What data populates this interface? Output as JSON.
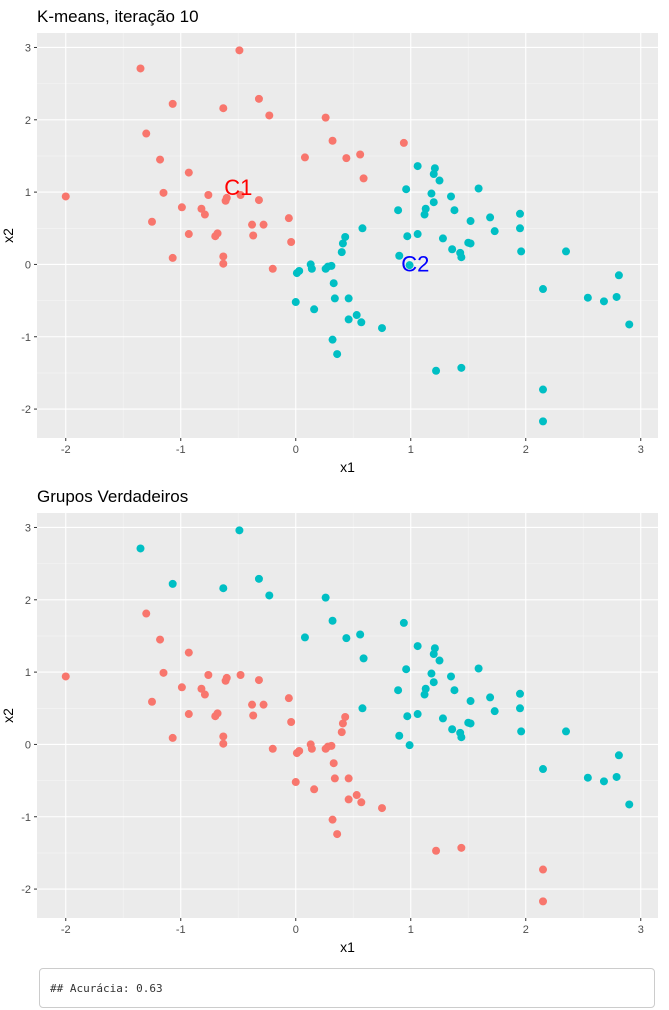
{
  "chart_data": [
    {
      "type": "scatter",
      "title": "K-means, iteração 10",
      "xlabel": "x1",
      "ylabel": "x2",
      "xlim": [
        -2.25,
        3.15
      ],
      "ylim": [
        -2.4,
        3.2
      ],
      "xticks": [
        "-2",
        "-1",
        "0",
        "1",
        "2",
        "3"
      ],
      "yticks": [
        "-2",
        "-1",
        "0",
        "1",
        "2",
        "3"
      ],
      "grid": true,
      "colors": {
        "c1": "#F8766D",
        "c2": "#00BFC4"
      },
      "annotations": [
        {
          "text": "C1",
          "x": -0.5,
          "y": 1.07,
          "color": "#ff0000"
        },
        {
          "text": "C2",
          "x": 1.04,
          "y": 0.01,
          "color": "#0000ff"
        }
      ],
      "series": [
        {
          "group": "c1",
          "points": [
            [
              -2.0,
              0.94
            ],
            [
              -1.35,
              2.71
            ],
            [
              -1.3,
              1.81
            ],
            [
              -1.25,
              0.59
            ],
            [
              -1.18,
              1.45
            ],
            [
              -1.15,
              0.99
            ],
            [
              -1.07,
              2.22
            ],
            [
              -1.07,
              0.09
            ],
            [
              -0.99,
              0.79
            ],
            [
              -0.93,
              1.27
            ],
            [
              -0.93,
              0.42
            ],
            [
              -0.82,
              0.77
            ],
            [
              -0.79,
              0.69
            ],
            [
              -0.76,
              0.96
            ],
            [
              -0.7,
              0.39
            ],
            [
              -0.68,
              0.43
            ],
            [
              -0.63,
              2.16
            ],
            [
              -0.63,
              0.11
            ],
            [
              -0.63,
              0.01
            ],
            [
              -0.61,
              0.88
            ],
            [
              -0.6,
              0.92
            ],
            [
              -0.49,
              2.96
            ],
            [
              -0.48,
              0.96
            ],
            [
              -0.38,
              0.55
            ],
            [
              -0.37,
              0.4
            ],
            [
              -0.32,
              2.29
            ],
            [
              -0.32,
              0.89
            ],
            [
              -0.28,
              0.55
            ],
            [
              -0.23,
              2.06
            ],
            [
              -0.2,
              -0.06
            ],
            [
              -0.06,
              0.64
            ],
            [
              -0.04,
              0.31
            ],
            [
              0.08,
              1.48
            ],
            [
              0.26,
              2.03
            ],
            [
              0.32,
              1.71
            ],
            [
              0.44,
              1.47
            ],
            [
              0.56,
              1.52
            ],
            [
              0.59,
              1.19
            ],
            [
              0.94,
              1.68
            ]
          ]
        },
        {
          "group": "c2",
          "points": [
            [
              0.0,
              -0.52
            ],
            [
              0.01,
              -0.12
            ],
            [
              0.03,
              -0.09
            ],
            [
              0.13,
              0.0
            ],
            [
              0.14,
              -0.06
            ],
            [
              0.16,
              -0.62
            ],
            [
              0.26,
              -0.06
            ],
            [
              0.28,
              -0.03
            ],
            [
              0.31,
              -0.02
            ],
            [
              0.32,
              -1.04
            ],
            [
              0.33,
              -0.26
            ],
            [
              0.34,
              -0.47
            ],
            [
              0.36,
              -1.24
            ],
            [
              0.4,
              0.17
            ],
            [
              0.41,
              0.29
            ],
            [
              0.43,
              0.38
            ],
            [
              0.46,
              -0.47
            ],
            [
              0.46,
              -0.76
            ],
            [
              0.53,
              -0.7
            ],
            [
              0.57,
              -0.8
            ],
            [
              0.58,
              0.5
            ],
            [
              0.75,
              -0.88
            ],
            [
              0.89,
              0.75
            ],
            [
              0.9,
              0.12
            ],
            [
              0.96,
              1.04
            ],
            [
              0.97,
              0.39
            ],
            [
              0.99,
              -0.01
            ],
            [
              1.06,
              1.36
            ],
            [
              1.06,
              0.42
            ],
            [
              1.12,
              0.69
            ],
            [
              1.13,
              0.77
            ],
            [
              1.18,
              0.98
            ],
            [
              1.2,
              0.86
            ],
            [
              1.2,
              1.25
            ],
            [
              1.21,
              1.33
            ],
            [
              1.22,
              -1.47
            ],
            [
              1.25,
              1.16
            ],
            [
              1.28,
              0.36
            ],
            [
              1.35,
              0.94
            ],
            [
              1.36,
              0.21
            ],
            [
              1.38,
              0.75
            ],
            [
              1.43,
              0.16
            ],
            [
              1.44,
              -1.43
            ],
            [
              1.44,
              0.1
            ],
            [
              1.5,
              0.3
            ],
            [
              1.52,
              0.6
            ],
            [
              1.52,
              0.29
            ],
            [
              1.59,
              1.05
            ],
            [
              1.69,
              0.65
            ],
            [
              1.73,
              0.46
            ],
            [
              1.95,
              0.7
            ],
            [
              1.95,
              0.5
            ],
            [
              1.96,
              0.18
            ],
            [
              2.15,
              -0.34
            ],
            [
              2.15,
              -1.73
            ],
            [
              2.15,
              -2.17
            ],
            [
              2.35,
              0.18
            ],
            [
              2.54,
              -0.46
            ],
            [
              2.68,
              -0.51
            ],
            [
              2.79,
              -0.45
            ],
            [
              2.81,
              -0.15
            ],
            [
              2.9,
              -0.83
            ]
          ]
        }
      ]
    },
    {
      "type": "scatter",
      "title": "Grupos Verdadeiros",
      "xlabel": "x1",
      "ylabel": "x2",
      "xlim": [
        -2.25,
        3.15
      ],
      "ylim": [
        -2.4,
        3.2
      ],
      "xticks": [
        "-2",
        "-1",
        "0",
        "1",
        "2",
        "3"
      ],
      "yticks": [
        "-2",
        "-1",
        "0",
        "1",
        "2",
        "3"
      ],
      "grid": true,
      "colors": {
        "c1": "#F8766D",
        "c2": "#00BFC4"
      },
      "annotations": [],
      "series": [
        {
          "group": "c1",
          "points": [
            [
              -2.0,
              0.94
            ],
            [
              -1.3,
              1.81
            ],
            [
              -1.25,
              0.59
            ],
            [
              -1.18,
              1.45
            ],
            [
              -1.15,
              0.99
            ],
            [
              -1.07,
              0.09
            ],
            [
              -0.99,
              0.79
            ],
            [
              -0.93,
              1.27
            ],
            [
              -0.93,
              0.42
            ],
            [
              -0.82,
              0.77
            ],
            [
              -0.79,
              0.69
            ],
            [
              -0.76,
              0.96
            ],
            [
              -0.7,
              0.39
            ],
            [
              -0.68,
              0.43
            ],
            [
              -0.63,
              0.11
            ],
            [
              -0.63,
              0.01
            ],
            [
              -0.61,
              0.88
            ],
            [
              -0.6,
              0.92
            ],
            [
              -0.48,
              0.96
            ],
            [
              -0.38,
              0.55
            ],
            [
              -0.37,
              0.4
            ],
            [
              -0.32,
              0.89
            ],
            [
              -0.28,
              0.55
            ],
            [
              -0.2,
              -0.06
            ],
            [
              -0.06,
              0.64
            ],
            [
              -0.04,
              0.31
            ],
            [
              0.0,
              -0.52
            ],
            [
              0.01,
              -0.12
            ],
            [
              0.03,
              -0.09
            ],
            [
              0.13,
              0.0
            ],
            [
              0.14,
              -0.06
            ],
            [
              0.16,
              -0.62
            ],
            [
              0.26,
              -0.06
            ],
            [
              0.28,
              -0.03
            ],
            [
              0.31,
              -0.02
            ],
            [
              0.32,
              -1.04
            ],
            [
              0.33,
              -0.26
            ],
            [
              0.34,
              -0.47
            ],
            [
              0.36,
              -1.24
            ],
            [
              0.4,
              0.17
            ],
            [
              0.41,
              0.29
            ],
            [
              0.43,
              0.38
            ],
            [
              0.46,
              -0.47
            ],
            [
              0.46,
              -0.76
            ],
            [
              0.53,
              -0.7
            ],
            [
              0.57,
              -0.8
            ],
            [
              0.75,
              -0.88
            ],
            [
              1.22,
              -1.47
            ],
            [
              1.44,
              -1.43
            ],
            [
              2.15,
              -1.73
            ],
            [
              2.15,
              -2.17
            ]
          ]
        },
        {
          "group": "c2",
          "points": [
            [
              -1.35,
              2.71
            ],
            [
              -1.07,
              2.22
            ],
            [
              -0.63,
              2.16
            ],
            [
              -0.49,
              2.96
            ],
            [
              -0.32,
              2.29
            ],
            [
              -0.23,
              2.06
            ],
            [
              0.08,
              1.48
            ],
            [
              0.26,
              2.03
            ],
            [
              0.32,
              1.71
            ],
            [
              0.44,
              1.47
            ],
            [
              0.56,
              1.52
            ],
            [
              0.58,
              0.5
            ],
            [
              0.59,
              1.19
            ],
            [
              0.89,
              0.75
            ],
            [
              0.9,
              0.12
            ],
            [
              0.94,
              1.68
            ],
            [
              0.96,
              1.04
            ],
            [
              0.97,
              0.39
            ],
            [
              0.99,
              -0.01
            ],
            [
              1.06,
              1.36
            ],
            [
              1.06,
              0.42
            ],
            [
              1.12,
              0.69
            ],
            [
              1.13,
              0.77
            ],
            [
              1.18,
              0.98
            ],
            [
              1.2,
              0.86
            ],
            [
              1.2,
              1.25
            ],
            [
              1.21,
              1.33
            ],
            [
              1.25,
              1.16
            ],
            [
              1.28,
              0.36
            ],
            [
              1.35,
              0.94
            ],
            [
              1.36,
              0.21
            ],
            [
              1.38,
              0.75
            ],
            [
              1.43,
              0.16
            ],
            [
              1.44,
              0.1
            ],
            [
              1.5,
              0.3
            ],
            [
              1.52,
              0.6
            ],
            [
              1.52,
              0.29
            ],
            [
              1.59,
              1.05
            ],
            [
              1.69,
              0.65
            ],
            [
              1.73,
              0.46
            ],
            [
              1.95,
              0.7
            ],
            [
              1.95,
              0.5
            ],
            [
              1.96,
              0.18
            ],
            [
              2.15,
              -0.34
            ],
            [
              2.35,
              0.18
            ],
            [
              2.54,
              -0.46
            ],
            [
              2.68,
              -0.51
            ],
            [
              2.79,
              -0.45
            ],
            [
              2.81,
              -0.15
            ],
            [
              2.9,
              -0.83
            ]
          ]
        }
      ]
    }
  ],
  "output": {
    "text": "## Acurácia: 0.63"
  }
}
